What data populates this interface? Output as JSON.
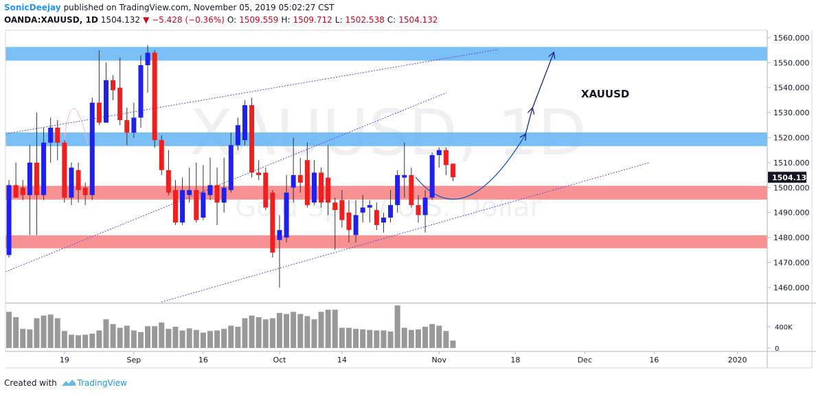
{
  "header": {
    "author": "SonicDeejay",
    "published": "published on TradingView.com, November 05, 2019 05:02:27 CST",
    "quote": [
      {
        "text": "OANDA:XAUUSD, 1D",
        "color": "#131722"
      },
      {
        "text": "1504.132",
        "color": "#131722"
      },
      {
        "text": "▼ −5.428 (−0.36%)",
        "color": "#d0021b"
      },
      {
        "text": "O:",
        "color": "#131722"
      },
      {
        "text": "1509.559",
        "color": "#d0021b"
      },
      {
        "text": "H:",
        "color": "#131722"
      },
      {
        "text": "1509.712",
        "color": "#d0021b"
      },
      {
        "text": "L:",
        "color": "#131722"
      },
      {
        "text": "1502.538",
        "color": "#d0021b"
      },
      {
        "text": "C:",
        "color": "#131722"
      },
      {
        "text": "1504.132",
        "color": "#d0021b"
      }
    ]
  },
  "footer": {
    "created": "Created with",
    "brand": "TradingView"
  },
  "chart_data": {
    "type": "candlestick",
    "watermark": "XAUUSD, 1D",
    "watermark_sub": "Gold Spot / U.S. Dollar",
    "annotation": "XAUUSD",
    "up_color": "#1f1fee",
    "down_color": "#ee1f1f",
    "volume_color": "#999999",
    "open": [
      1473,
      1501,
      1500,
      1497,
      1510,
      1497,
      1518,
      1524,
      1518,
      1496,
      1507,
      1500,
      1497,
      1534,
      1526,
      1543,
      1540,
      1527,
      1522,
      1528,
      1549,
      1554,
      1519,
      1507,
      1499,
      1486,
      1497,
      1499,
      1488,
      1497,
      1501,
      1494,
      1499,
      1517,
      1519,
      1533,
      1506,
      1506,
      1498,
      1479,
      1480,
      1500,
      1505,
      1511,
      1494,
      1506,
      1504,
      1494,
      1495,
      1490,
      1481,
      1490,
      1492,
      1491,
      1486,
      1488,
      1493,
      1504,
      1505,
      1493,
      1489,
      1496,
      1513,
      1515,
      1509.559
    ],
    "high": [
      1503,
      1510,
      1503,
      1517,
      1530,
      1524,
      1528,
      1527,
      1519,
      1510,
      1510,
      1502,
      1536,
      1555,
      1550,
      1545,
      1552,
      1532,
      1534,
      1553,
      1557,
      1555,
      1521,
      1515,
      1503,
      1504,
      1508,
      1510,
      1509,
      1512,
      1508,
      1512,
      1522,
      1528,
      1535,
      1536,
      1511,
      1508,
      1499,
      1489,
      1505,
      1520,
      1512,
      1518,
      1511,
      1508,
      1517,
      1496,
      1499,
      1495,
      1495,
      1497,
      1495,
      1494,
      1490,
      1499,
      1507,
      1518,
      1508,
      1497,
      1499,
      1514,
      1516,
      1516,
      1509.712
    ],
    "low": [
      1472,
      1496,
      1495,
      1481,
      1481,
      1495,
      1510,
      1511,
      1494,
      1493,
      1494,
      1493,
      1495,
      1525,
      1526,
      1535,
      1525,
      1517,
      1520,
      1524,
      1538,
      1516,
      1505,
      1497,
      1485,
      1485,
      1494,
      1486,
      1487,
      1495,
      1485,
      1490,
      1498,
      1515,
      1517,
      1504,
      1503,
      1491,
      1472,
      1460,
      1478,
      1494,
      1498,
      1492,
      1493,
      1492,
      1489,
      1475,
      1484,
      1478,
      1478,
      1486,
      1486,
      1483,
      1482,
      1486,
      1490,
      1496,
      1492,
      1486,
      1482,
      1495,
      1508,
      1505,
      1502.538
    ],
    "close": [
      1501,
      1496,
      1497,
      1510,
      1497,
      1518,
      1524,
      1518,
      1496,
      1508,
      1499,
      1497,
      1534,
      1526,
      1543,
      1539,
      1527,
      1522,
      1528,
      1549,
      1554,
      1519,
      1507,
      1498,
      1486,
      1499,
      1499,
      1487,
      1498,
      1501,
      1494,
      1500,
      1517,
      1525,
      1533,
      1506,
      1505,
      1492,
      1474,
      1483,
      1498,
      1505,
      1502,
      1493,
      1506,
      1494,
      1494,
      1491,
      1487,
      1483,
      1489,
      1492,
      1493,
      1485,
      1488,
      1493,
      1505,
      1505,
      1493,
      1489,
      1496,
      1513,
      1515,
      1509,
      1504.132
    ],
    "volume": [
      680000,
      580000,
      360000,
      350000,
      560000,
      610000,
      630000,
      560000,
      320000,
      250000,
      240000,
      250000,
      270000,
      330000,
      540000,
      450000,
      380000,
      420000,
      330000,
      300000,
      410000,
      410000,
      480000,
      360000,
      400000,
      330000,
      370000,
      340000,
      290000,
      320000,
      330000,
      360000,
      420000,
      400000,
      560000,
      610000,
      580000,
      540000,
      560000,
      660000,
      640000,
      680000,
      640000,
      600000,
      540000,
      680000,
      720000,
      720000,
      380000,
      380000,
      360000,
      350000,
      340000,
      330000,
      330000,
      310000,
      800000,
      380000,
      340000,
      350000,
      400000,
      450000,
      420000,
      320000,
      140000
    ],
    "xlim": [
      -0.5,
      109.3
    ],
    "xticks": [
      {
        "value": 8,
        "label": "19"
      },
      {
        "value": 18,
        "label": "Sep"
      },
      {
        "value": 28,
        "label": "16"
      },
      {
        "value": 39,
        "label": "Oct"
      },
      {
        "value": 48,
        "label": "14"
      },
      {
        "value": 62,
        "label": "Nov"
      },
      {
        "value": 73,
        "label": "18"
      },
      {
        "value": 83,
        "label": "Dec"
      },
      {
        "value": 93,
        "label": "16"
      },
      {
        "value": 105,
        "label": "2020"
      }
    ],
    "ylim": [
      1454.2,
      1563
    ],
    "yticks": [
      {
        "value": 1460,
        "label": "1460.000"
      },
      {
        "value": 1470,
        "label": "1470.000"
      },
      {
        "value": 1480,
        "label": "1480.000"
      },
      {
        "value": 1490,
        "label": "1490.000"
      },
      {
        "value": 1500,
        "label": "1500.000"
      },
      {
        "value": 1510,
        "label": "1510.000"
      },
      {
        "value": 1520,
        "label": "1520.000"
      },
      {
        "value": 1530,
        "label": "1530.000"
      },
      {
        "value": 1540,
        "label": "1540.000"
      },
      {
        "value": 1550,
        "label": "1550.000"
      },
      {
        "value": 1560,
        "label": "1560.000"
      }
    ],
    "volume_ylim": [
      -65000,
      826000
    ],
    "volume_ticks": [
      0,
      {
        "value": 400000,
        "label": "400K"
      }
    ],
    "last_price": 1504.132,
    "zones": [
      {
        "low": 1550.8,
        "high": 1556.3,
        "color": "#64b4f6"
      },
      {
        "low": 1516.6,
        "high": 1522.1,
        "color": "#64b4f6"
      },
      {
        "low": 1495.2,
        "high": 1500.7,
        "color": "#f77f7f"
      },
      {
        "low": 1475.7,
        "high": 1480.9,
        "color": "#f77f7f"
      }
    ]
  }
}
